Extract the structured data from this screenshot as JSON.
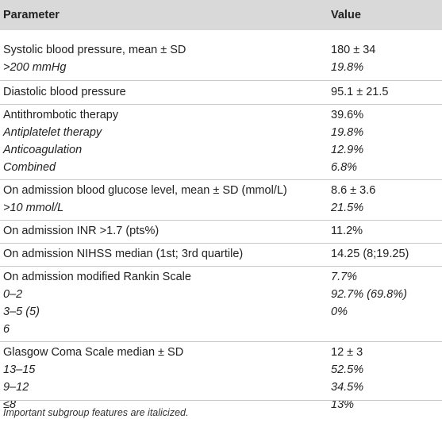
{
  "header": {
    "param": "Parameter",
    "value": "Value"
  },
  "rows": {
    "sbp": {
      "param": "Systolic blood pressure, mean ± SD",
      "value": "180 ± 34"
    },
    "sbp_sub": {
      "param": ">200 mmHg",
      "value": "19.8%"
    },
    "dbp": {
      "param": "Diastolic blood pressure",
      "value": "95.1 ± 21.5"
    },
    "at": {
      "param": "Antithrombotic therapy",
      "value": "39.6%"
    },
    "at_sub1": {
      "param": "Antiplatelet therapy",
      "value": "19.8%"
    },
    "at_sub2": {
      "param": "Anticoagulation",
      "value": "12.9%"
    },
    "at_sub3": {
      "param": "Combined",
      "value": "6.8%"
    },
    "glu": {
      "param": "On admission blood glucose level, mean ± SD (mmol/L)",
      "value": "8.6 ± 3.6"
    },
    "glu_sub": {
      "param": ">10 mmol/L",
      "value": "21.5%"
    },
    "inr": {
      "param": "On admission INR >1.7 (pts%)",
      "value": "11.2%"
    },
    "nihss": {
      "param": "On admission NIHSS median (1st; 3rd quartile)",
      "value": "14.25 (8;19.25)"
    },
    "mrs": {
      "param": "On admission modified Rankin Scale",
      "value": "7.7%"
    },
    "mrs_sub1": {
      "param": "0–2",
      "value": "92.7% (69.8%)"
    },
    "mrs_sub2": {
      "param": "3–5 (5)",
      "value": "0%"
    },
    "mrs_sub3": {
      "param": "6",
      "value": ""
    },
    "gcs": {
      "param": "Glasgow Coma Scale median ± SD",
      "value": "12 ± 3"
    },
    "gcs_sub1": {
      "param": "13–15",
      "value": "52.5%"
    },
    "gcs_sub2": {
      "param": "9–12",
      "value": "34.5%"
    },
    "gcs_sub3": {
      "param": "≤8",
      "value": "13%"
    }
  },
  "footnote": "Important subgroup features are italicized."
}
